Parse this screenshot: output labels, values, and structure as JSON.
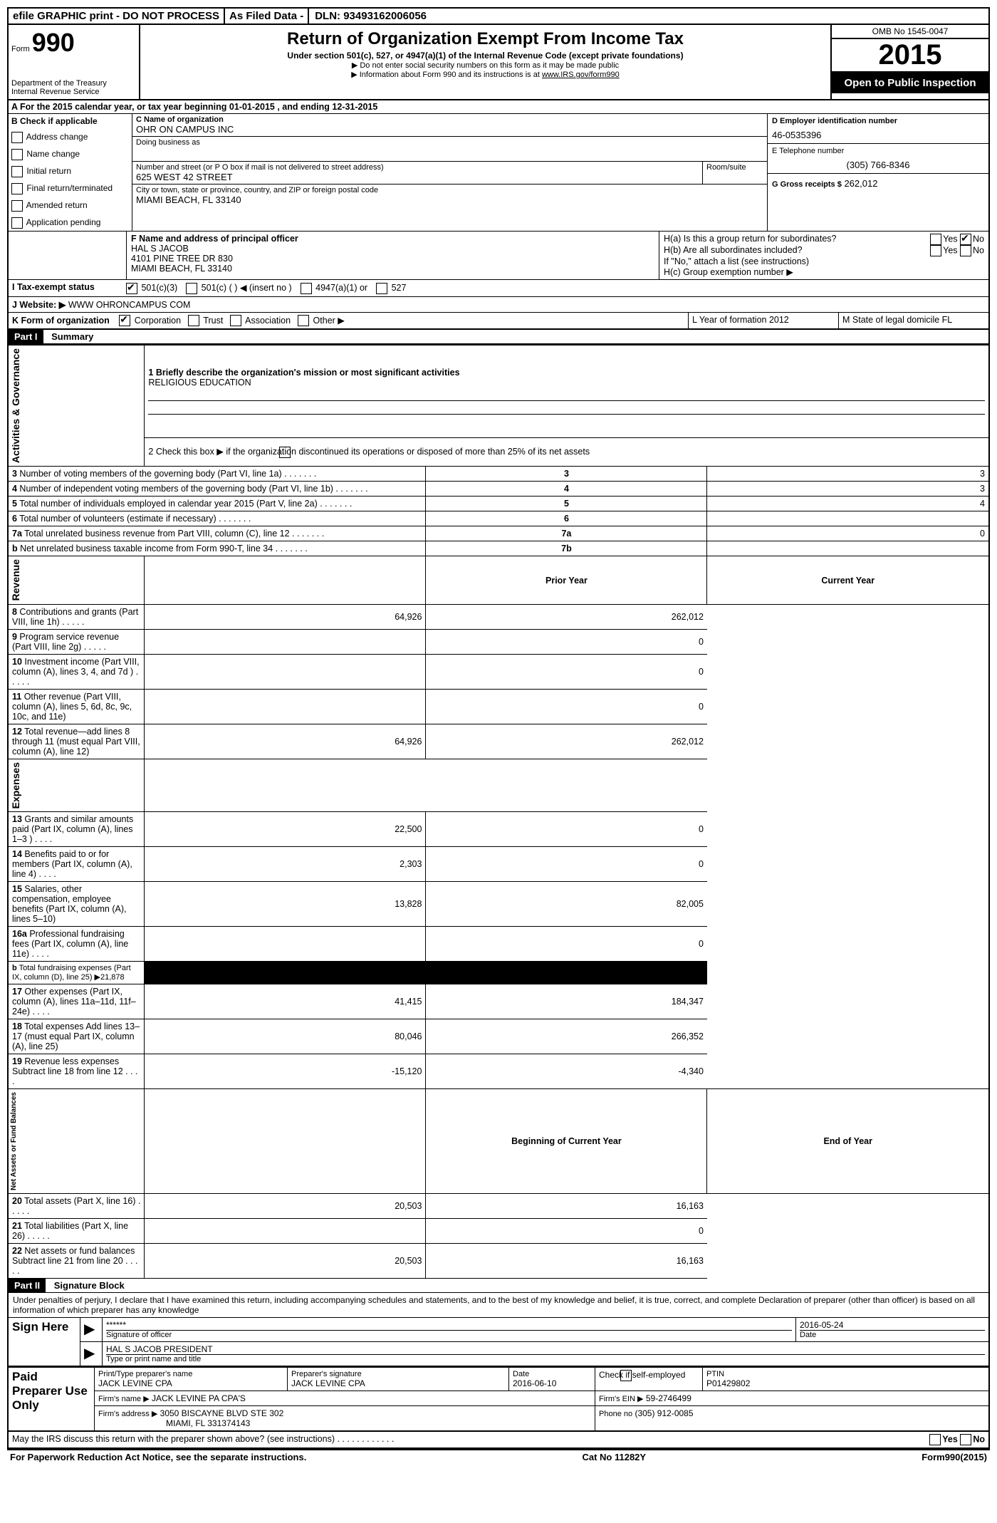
{
  "topbar": {
    "efile": "efile GRAPHIC print - DO NOT PROCESS",
    "asfiled": "As Filed Data -",
    "dln_label": "DLN:",
    "dln": "93493162006056"
  },
  "header": {
    "form_label": "Form",
    "form_no": "990",
    "dept": "Department of the Treasury",
    "irs": "Internal Revenue Service",
    "title": "Return of Organization Exempt From Income Tax",
    "subtitle": "Under section 501(c), 527, or 4947(a)(1) of the Internal Revenue Code (except private foundations)",
    "note1": "▶ Do not enter social security numbers on this form as it may be made public",
    "note2_pre": "▶ Information about Form 990 and its instructions is at ",
    "note2_link": "www.IRS.gov/form990",
    "omb": "OMB No 1545-0047",
    "year": "2015",
    "open": "Open to Public Inspection"
  },
  "lineA": "A   For the 2015 calendar year, or tax year beginning 01-01-2015    , and ending 12-31-2015",
  "sectionB": {
    "label": "B  Check if applicable",
    "items": [
      "Address change",
      "Name change",
      "Initial return",
      "Final return/terminated",
      "Amended return",
      "Application pending"
    ]
  },
  "sectionC": {
    "name_label": "C Name of organization",
    "name": "OHR ON CAMPUS INC",
    "dba_label": "Doing business as",
    "street_label": "Number and street (or P O  box if mail is not delivered to street address)",
    "room_label": "Room/suite",
    "street": "625 WEST 42 STREET",
    "city_label": "City or town, state or province, country, and ZIP or foreign postal code",
    "city": "MIAMI BEACH, FL  33140"
  },
  "sectionD": {
    "label": "D Employer identification number",
    "value": "46-0535396"
  },
  "sectionE": {
    "label": "E Telephone number",
    "value": "(305) 766-8346"
  },
  "sectionG": {
    "label": "G Gross receipts $",
    "value": "262,012"
  },
  "sectionF": {
    "label": "F   Name and address of principal officer",
    "name": "HAL S JACOB",
    "addr1": "4101 PINE TREE DR 830",
    "addr2": "MIAMI BEACH, FL  33140"
  },
  "sectionH": {
    "ha": "H(a)  Is this a group return for subordinates?",
    "hb": "H(b)  Are all subordinates included?",
    "hnote": "If \"No,\" attach a list  (see instructions)",
    "hc": "H(c)   Group exemption number ▶",
    "yes": "Yes",
    "no": "No"
  },
  "sectionI": {
    "label": "I   Tax-exempt status",
    "opts": [
      "501(c)(3)",
      "501(c) (  ) ◀ (insert no )",
      "4947(a)(1) or",
      "527"
    ]
  },
  "sectionJ": {
    "label": "J   Website: ▶",
    "value": "WWW OHRONCAMPUS COM"
  },
  "sectionK": {
    "label": "K Form of organization",
    "opts": [
      "Corporation",
      "Trust",
      "Association",
      "Other ▶"
    ],
    "L": "L Year of formation  2012",
    "M": "M State of legal domicile  FL"
  },
  "part1": {
    "label": "Part I",
    "title": "Summary"
  },
  "summary": {
    "q1": "1 Briefly describe the organization's mission or most significant activities",
    "q1_ans": "RELIGIOUS EDUCATION",
    "q2": "2  Check this box ▶      if the organization discontinued its operations or disposed of more than 25% of its net assets",
    "rows_gov": [
      {
        "n": "3",
        "t": "Number of voting members of the governing body (Part VI, line 1a)",
        "box": "3",
        "v": "3"
      },
      {
        "n": "4",
        "t": "Number of independent voting members of the governing body (Part VI, line 1b)",
        "box": "4",
        "v": "3"
      },
      {
        "n": "5",
        "t": "Total number of individuals employed in calendar year 2015 (Part V, line 2a)",
        "box": "5",
        "v": "4"
      },
      {
        "n": "6",
        "t": "Total number of volunteers (estimate if necessary)",
        "box": "6",
        "v": ""
      },
      {
        "n": "7a",
        "t": "Total unrelated business revenue from Part VIII, column (C), line 12",
        "box": "7a",
        "v": "0"
      },
      {
        "n": "b",
        "t": "Net unrelated business taxable income from Form 990-T, line 34",
        "box": "7b",
        "v": ""
      }
    ],
    "col_prior": "Prior Year",
    "col_current": "Current Year",
    "rows_rev": [
      {
        "n": "8",
        "t": "Contributions and grants (Part VIII, line 1h)",
        "p": "64,926",
        "c": "262,012"
      },
      {
        "n": "9",
        "t": "Program service revenue (Part VIII, line 2g)",
        "p": "",
        "c": "0"
      },
      {
        "n": "10",
        "t": "Investment income (Part VIII, column (A), lines 3, 4, and 7d )",
        "p": "",
        "c": "0"
      },
      {
        "n": "11",
        "t": "Other revenue (Part VIII, column (A), lines 5, 6d, 8c, 9c, 10c, and 11e)",
        "p": "",
        "c": "0"
      },
      {
        "n": "12",
        "t": "Total revenue—add lines 8 through 11 (must equal Part VIII, column (A), line 12)",
        "p": "64,926",
        "c": "262,012"
      }
    ],
    "rows_exp": [
      {
        "n": "13",
        "t": "Grants and similar amounts paid (Part IX, column (A), lines 1–3 )",
        "p": "22,500",
        "c": "0"
      },
      {
        "n": "14",
        "t": "Benefits paid to or for members (Part IX, column (A), line 4)",
        "p": "2,303",
        "c": "0"
      },
      {
        "n": "15",
        "t": "Salaries, other compensation, employee benefits (Part IX, column (A), lines 5–10)",
        "p": "13,828",
        "c": "82,005"
      },
      {
        "n": "16a",
        "t": "Professional fundraising fees (Part IX, column (A), line 11e)",
        "p": "",
        "c": "0"
      },
      {
        "n": "b",
        "t": "Total fundraising expenses (Part IX, column (D), line 25) ▶21,878",
        "p": "BLACK",
        "c": "BLACK"
      },
      {
        "n": "17",
        "t": "Other expenses (Part IX, column (A), lines 11a–11d, 11f–24e)",
        "p": "41,415",
        "c": "184,347"
      },
      {
        "n": "18",
        "t": "Total expenses  Add lines 13–17 (must equal Part IX, column (A), line 25)",
        "p": "80,046",
        "c": "266,352"
      },
      {
        "n": "19",
        "t": "Revenue less expenses  Subtract line 18 from line 12",
        "p": "-15,120",
        "c": "-4,340"
      }
    ],
    "col_begin": "Beginning of Current Year",
    "col_end": "End of Year",
    "rows_net": [
      {
        "n": "20",
        "t": "Total assets (Part X, line 16)",
        "p": "20,503",
        "c": "16,163"
      },
      {
        "n": "21",
        "t": "Total liabilities (Part X, line 26)",
        "p": "",
        "c": "0"
      },
      {
        "n": "22",
        "t": "Net assets or fund balances  Subtract line 21 from line 20",
        "p": "20,503",
        "c": "16,163"
      }
    ],
    "vert_gov": "Activities & Governance",
    "vert_rev": "Revenue",
    "vert_exp": "Expenses",
    "vert_net": "Net Assets or Fund Balances"
  },
  "part2": {
    "label": "Part II",
    "title": "Signature Block"
  },
  "perjury": "Under penalties of perjury, I declare that I have examined this return, including accompanying schedules and statements, and to the best of my knowledge and belief, it is true, correct, and complete  Declaration of preparer (other than officer) is based on all information of which preparer has any knowledge",
  "sign": {
    "label": "Sign Here",
    "stars": "******",
    "sig_label": "Signature of officer",
    "date": "2016-05-24",
    "date_label": "Date",
    "name": "HAL S JACOB PRESIDENT",
    "name_label": "Type or print name and title"
  },
  "preparer": {
    "label": "Paid Preparer Use Only",
    "h1": "Print/Type preparer's name",
    "h2": "Preparer's signature",
    "h3": "Date",
    "h4": "Check        if self-employed",
    "h5": "PTIN",
    "name": "JACK LEVINE CPA",
    "sig": "JACK LEVINE CPA",
    "date": "2016-06-10",
    "ptin": "P01429802",
    "firm_label": "Firm's name      ▶",
    "firm": "JACK LEVINE PA CPA'S",
    "ein_label": "Firm's EIN ▶",
    "ein": "59-2746499",
    "addr_label": "Firm's address ▶",
    "addr": "3050 BISCAYNE BLVD STE 302",
    "addr2": "MIAMI, FL  331374143",
    "phone_label": "Phone no",
    "phone": "(305) 912-0085"
  },
  "discuss": "May the IRS discuss this return with the preparer shown above? (see instructions)",
  "footer": {
    "left": "For Paperwork Reduction Act Notice, see the separate instructions.",
    "mid": "Cat No  11282Y",
    "right": "Form990(2015)"
  }
}
